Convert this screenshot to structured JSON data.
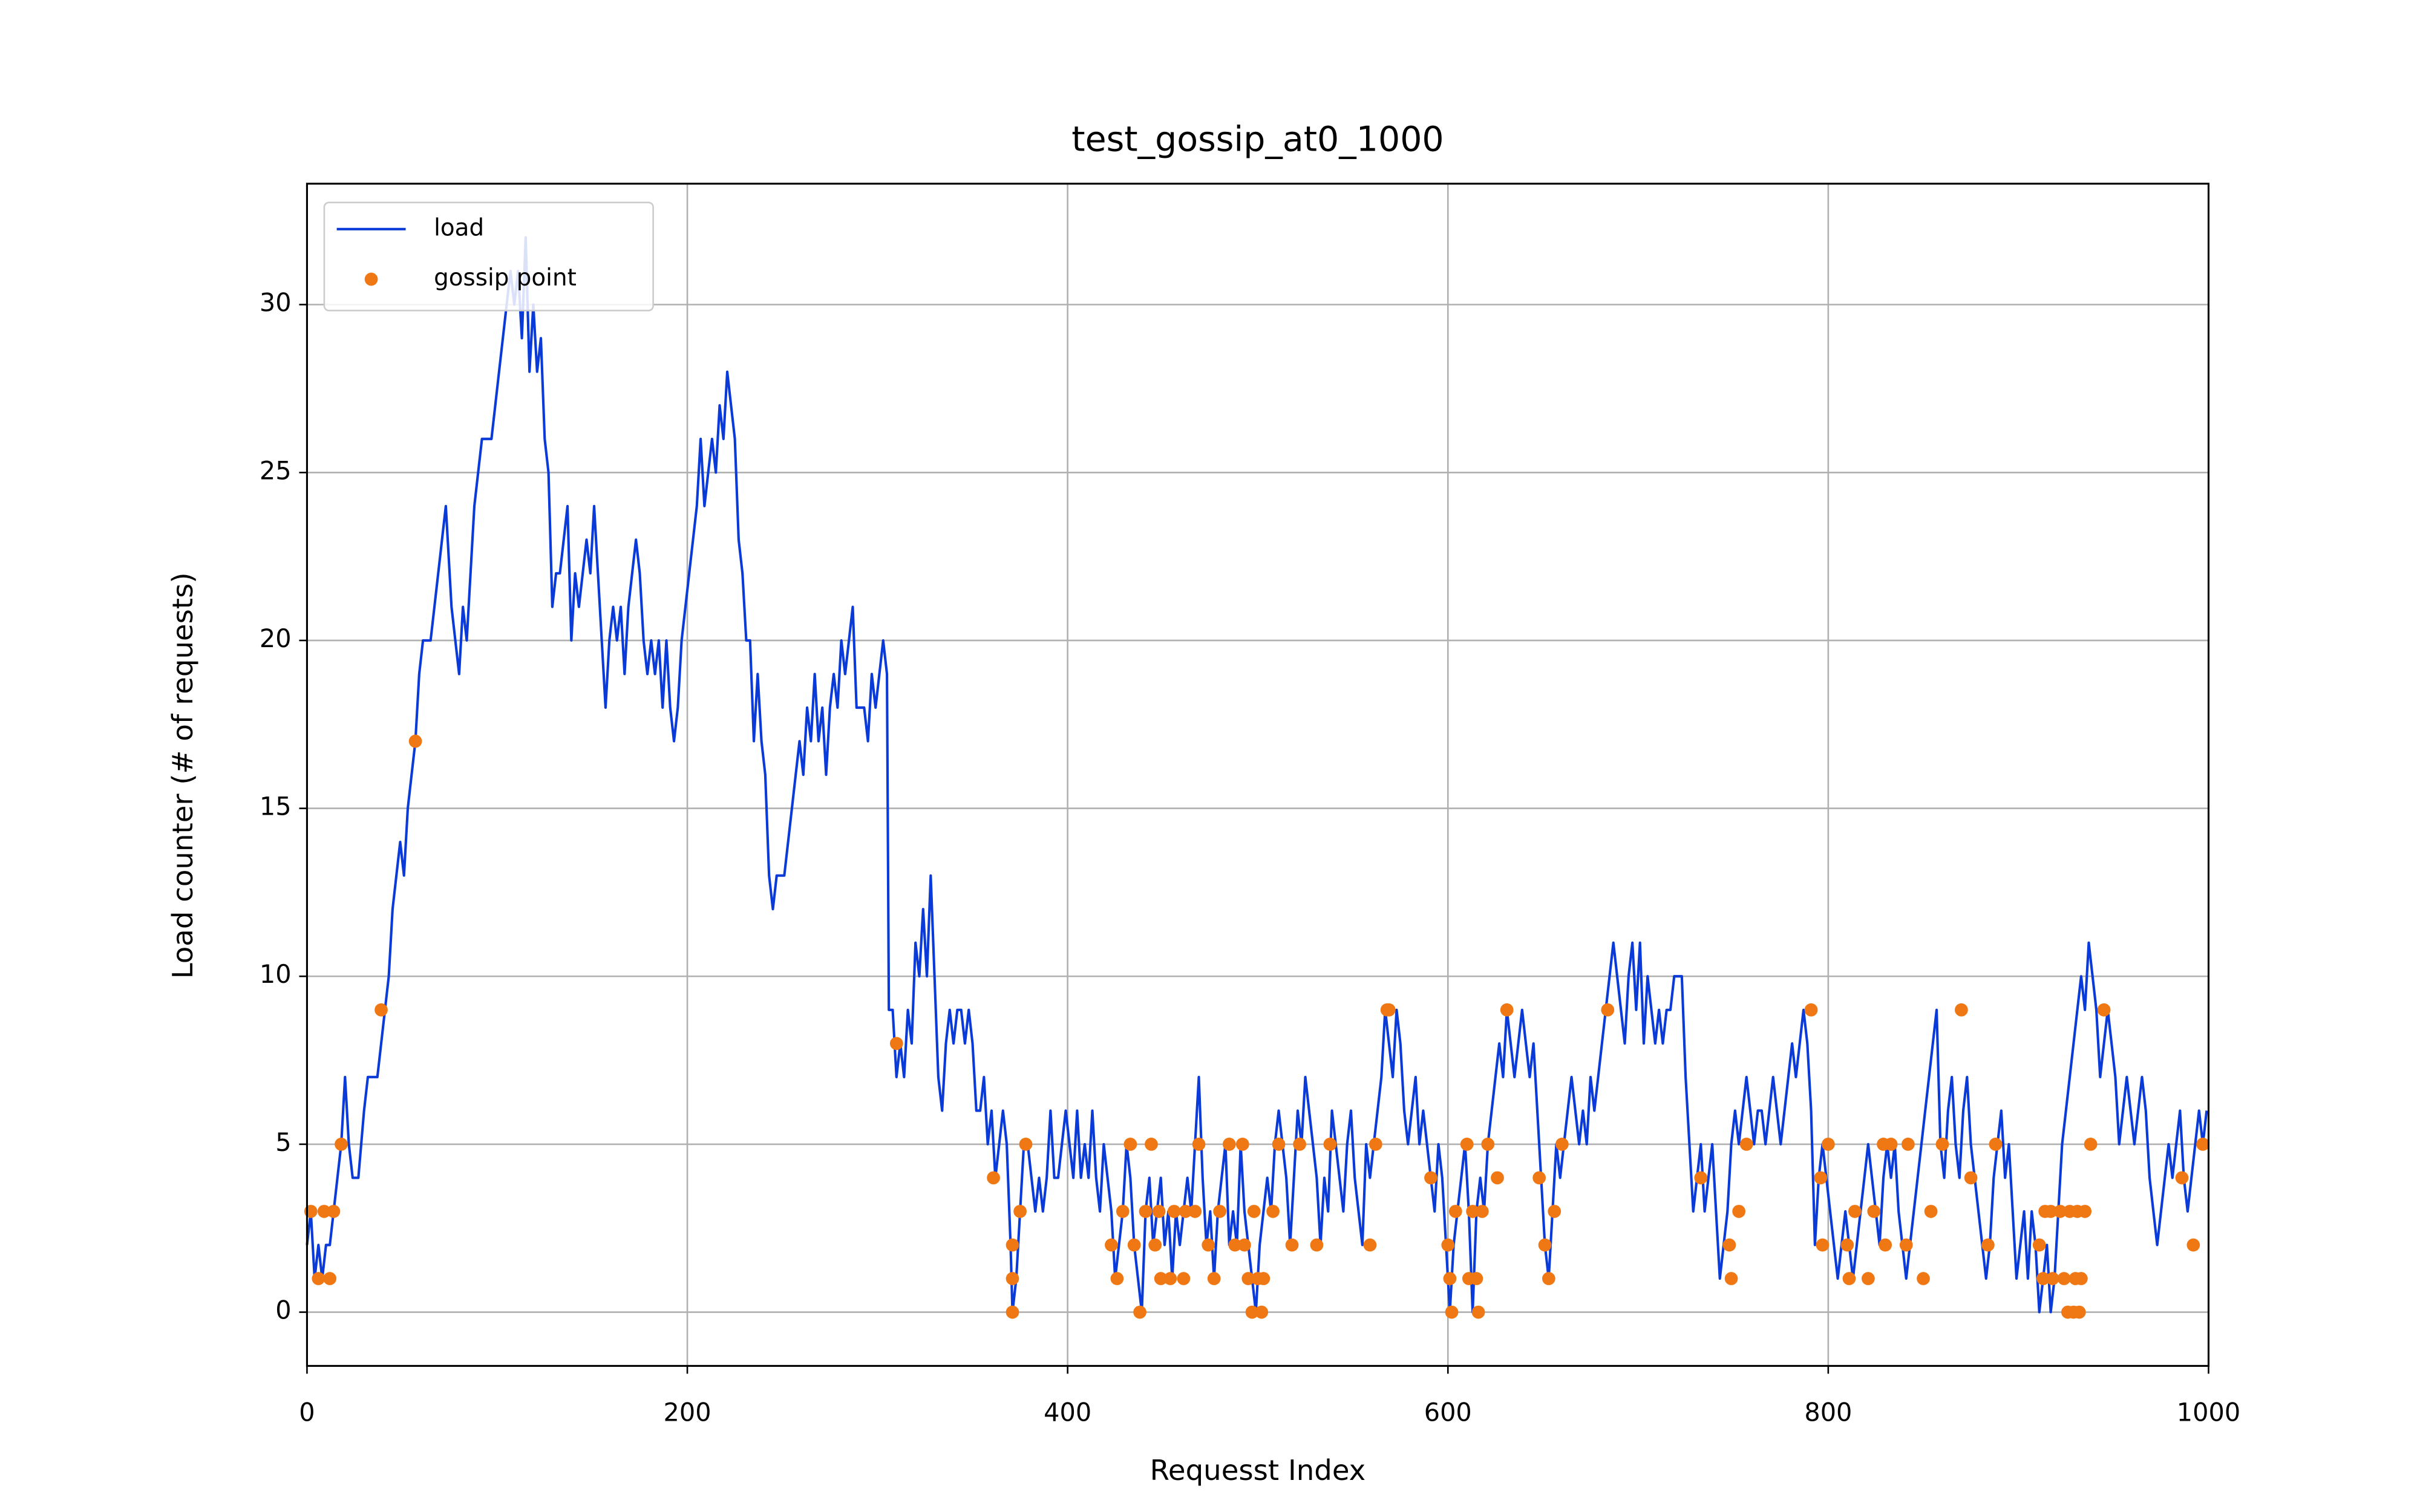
{
  "chart_data": {
    "type": "line",
    "title": "test_gossip_at0_1000",
    "x_label": "Requesst Index",
    "y_label": "Load counter (# of requests)",
    "xlim": [
      0,
      1000
    ],
    "ylim": [
      -1.6,
      33.6
    ],
    "xticks": [
      0,
      200,
      400,
      600,
      800,
      1000
    ],
    "yticks": [
      0,
      5,
      10,
      15,
      20,
      25,
      30
    ],
    "grid": true,
    "legend": "upper left",
    "series": [
      {
        "name": "load",
        "kind": "line",
        "color": "#0a3ad8",
        "x": [
          0,
          2,
          4,
          6,
          8,
          10,
          12,
          14,
          16,
          18,
          20,
          22,
          24,
          27,
          30,
          32,
          37,
          39,
          41,
          43,
          45,
          47,
          49,
          51,
          53,
          55,
          57,
          59,
          61,
          65,
          67,
          69,
          71,
          73,
          74,
          76,
          78,
          80,
          82,
          84,
          86,
          88,
          90,
          92,
          97,
          99,
          101,
          103,
          105,
          107,
          109,
          111,
          113,
          115,
          117,
          119,
          121,
          123,
          125,
          127,
          129,
          131,
          133,
          135,
          137,
          139,
          141,
          143,
          145,
          147,
          149,
          151,
          153,
          155,
          157,
          159,
          161,
          163,
          165,
          167,
          169,
          171,
          173,
          175,
          177,
          179,
          181,
          183,
          185,
          187,
          189,
          191,
          193,
          195,
          197,
          199,
          201,
          203,
          205,
          207,
          209,
          211,
          213,
          215,
          217,
          219,
          221,
          223,
          225,
          227,
          229,
          231,
          233,
          235,
          237,
          239,
          241,
          243,
          245,
          247,
          251,
          253,
          255,
          257,
          259,
          261,
          263,
          265,
          267,
          269,
          271,
          273,
          275,
          277,
          279,
          281,
          283,
          285,
          287,
          289,
          293,
          295,
          297,
          299,
          301,
          303,
          305,
          306,
          308,
          310,
          312,
          314,
          316,
          318,
          320,
          322,
          324,
          326,
          328,
          330,
          332,
          334,
          336,
          338,
          340,
          342,
          344,
          346,
          348,
          350,
          352,
          354,
          356,
          358,
          360,
          362,
          364,
          366,
          368,
          370,
          371,
          373,
          375,
          377,
          379,
          381,
          383,
          385,
          387,
          389,
          391,
          393,
          395,
          397,
          399,
          401,
          403,
          405,
          407,
          409,
          411,
          413,
          415,
          417,
          419,
          421,
          423,
          425,
          427,
          429,
          431,
          433,
          435,
          437,
          439,
          441,
          443,
          445,
          447,
          449,
          451,
          453,
          455,
          457,
          459,
          461,
          463,
          465,
          467,
          469,
          471,
          473,
          475,
          477,
          479,
          481,
          483,
          485,
          487,
          489,
          491,
          493,
          495,
          497,
          499,
          501,
          503,
          505,
          507,
          509,
          511,
          513,
          515,
          517,
          519,
          521,
          523,
          525,
          527,
          529,
          531,
          533,
          535,
          537,
          539,
          541,
          543,
          545,
          547,
          549,
          551,
          553,
          555,
          557,
          559,
          561,
          563,
          565,
          567,
          569,
          571,
          573,
          575,
          577,
          579,
          581,
          583,
          585,
          587,
          589,
          591,
          593,
          595,
          597,
          599,
          600,
          601,
          603,
          605,
          607,
          609,
          611,
          613,
          615,
          617,
          619,
          621,
          623,
          625,
          627,
          629,
          631,
          633,
          635,
          637,
          639,
          641,
          643,
          645,
          647,
          649,
          651,
          653,
          655,
          657,
          659,
          661,
          663,
          665,
          667,
          669,
          671,
          673,
          675,
          677,
          679,
          681,
          683,
          685,
          687,
          689,
          691,
          693,
          695,
          697,
          699,
          701,
          703,
          705,
          707,
          709,
          711,
          713,
          715,
          717,
          719,
          723,
          725,
          727,
          729,
          731,
          733,
          735,
          737,
          739,
          741,
          743,
          745,
          747,
          749,
          751,
          753,
          755,
          757,
          759,
          761,
          763,
          765,
          767,
          769,
          771,
          773,
          775,
          777,
          779,
          781,
          783,
          785,
          787,
          789,
          791,
          793,
          795,
          797,
          799,
          801,
          803,
          805,
          807,
          809,
          811,
          813,
          815,
          817,
          819,
          821,
          823,
          825,
          827,
          829,
          831,
          833,
          835,
          837,
          839,
          841,
          843,
          845,
          847,
          849,
          851,
          853,
          855,
          857,
          859,
          861,
          863,
          865,
          867,
          869,
          871,
          873,
          875,
          877,
          879,
          881,
          883,
          885,
          887,
          889,
          891,
          893,
          895,
          897,
          899,
          901,
          903,
          905,
          907,
          909,
          911,
          913,
          915,
          917,
          919,
          921,
          923,
          925,
          927,
          929,
          931,
          933,
          935,
          937,
          939,
          941,
          943,
          945,
          947,
          949,
          951,
          953,
          955,
          957,
          959,
          961,
          963,
          965,
          967,
          969,
          971,
          973,
          975,
          977,
          979,
          981,
          983,
          985,
          987,
          989,
          991,
          993,
          995,
          997,
          999
        ],
        "values": [
          2,
          3,
          1,
          2,
          1,
          2,
          2,
          3,
          4,
          5,
          7,
          5,
          4,
          4,
          6,
          7,
          7,
          8,
          9,
          10,
          12,
          13,
          14,
          13,
          15,
          16,
          17,
          19,
          20,
          20,
          21,
          22,
          23,
          24,
          23,
          21,
          20,
          19,
          21,
          20,
          22,
          24,
          25,
          26,
          26,
          27,
          28,
          29,
          30,
          31,
          30,
          31,
          29,
          32,
          28,
          30,
          28,
          29,
          26,
          25,
          21,
          22,
          22,
          23,
          24,
          20,
          22,
          21,
          22,
          23,
          22,
          24,
          22,
          20,
          18,
          20,
          21,
          20,
          21,
          19,
          21,
          22,
          23,
          22,
          20,
          19,
          20,
          19,
          20,
          18,
          20,
          18,
          17,
          18,
          20,
          21,
          22,
          23,
          24,
          26,
          24,
          25,
          26,
          25,
          27,
          26,
          28,
          27,
          26,
          23,
          22,
          20,
          20,
          17,
          19,
          17,
          16,
          13,
          12,
          13,
          13,
          14,
          15,
          16,
          17,
          16,
          18,
          17,
          19,
          17,
          18,
          16,
          18,
          19,
          18,
          20,
          19,
          20,
          21,
          18,
          18,
          17,
          19,
          18,
          19,
          20,
          19,
          9,
          9,
          7,
          8,
          7,
          9,
          8,
          11,
          10,
          12,
          10,
          13,
          10,
          7,
          6,
          8,
          9,
          8,
          9,
          9,
          8,
          9,
          8,
          6,
          6,
          7,
          5,
          6,
          4,
          5,
          6,
          5,
          2,
          0,
          1,
          3,
          5,
          5,
          4,
          3,
          4,
          3,
          4,
          6,
          4,
          4,
          5,
          6,
          5,
          4,
          6,
          4,
          5,
          4,
          6,
          4,
          3,
          5,
          4,
          3,
          1,
          2,
          3,
          5,
          4,
          2,
          1,
          0,
          3,
          4,
          2,
          3,
          4,
          2,
          3,
          1,
          3,
          2,
          3,
          4,
          3,
          5,
          7,
          4,
          2,
          3,
          1,
          3,
          4,
          5,
          2,
          3,
          2,
          5,
          3,
          2,
          1,
          0,
          2,
          3,
          4,
          3,
          5,
          6,
          5,
          4,
          2,
          4,
          6,
          5,
          7,
          6,
          5,
          4,
          2,
          4,
          3,
          6,
          5,
          4,
          3,
          5,
          6,
          4,
          3,
          2,
          5,
          4,
          5,
          6,
          7,
          9,
          8,
          7,
          9,
          8,
          6,
          5,
          6,
          7,
          5,
          6,
          5,
          4,
          3,
          5,
          4,
          2,
          1,
          0,
          2,
          3,
          4,
          5,
          3,
          0,
          3,
          4,
          3,
          5,
          6,
          7,
          8,
          7,
          9,
          8,
          7,
          8,
          9,
          8,
          7,
          8,
          6,
          4,
          2,
          1,
          3,
          5,
          4,
          5,
          6,
          7,
          6,
          5,
          6,
          5,
          7,
          6,
          7,
          8,
          9,
          10,
          11,
          10,
          9,
          8,
          10,
          11,
          9,
          11,
          8,
          10,
          9,
          8,
          9,
          8,
          9,
          9,
          10,
          10,
          7,
          5,
          3,
          4,
          5,
          3,
          4,
          5,
          3,
          1,
          2,
          3,
          5,
          6,
          5,
          6,
          7,
          6,
          5,
          6,
          6,
          5,
          6,
          7,
          6,
          5,
          6,
          7,
          8,
          7,
          8,
          9,
          8,
          6,
          2,
          4,
          5,
          4,
          3,
          2,
          1,
          2,
          3,
          2,
          1,
          2,
          3,
          4,
          5,
          4,
          3,
          2,
          4,
          5,
          4,
          5,
          3,
          2,
          1,
          2,
          3,
          4,
          5,
          6,
          7,
          8,
          9,
          5,
          4,
          6,
          7,
          5,
          4,
          6,
          7,
          5,
          4,
          3,
          2,
          1,
          2,
          4,
          5,
          6,
          4,
          5,
          3,
          1,
          2,
          3,
          1,
          3,
          2,
          0,
          1,
          2,
          0,
          1,
          3,
          5,
          6,
          7,
          8,
          9,
          10,
          9,
          11,
          10,
          9,
          7,
          8,
          9,
          8,
          7,
          5,
          6,
          7,
          6,
          5,
          6,
          7,
          6,
          4,
          3,
          2,
          3,
          4,
          5,
          4,
          5,
          6,
          4,
          3,
          4,
          5,
          6,
          5,
          6
        ]
      },
      {
        "name": "gossip point",
        "kind": "scatter",
        "color": "#f07814",
        "x": [
          2,
          6,
          9,
          12,
          14,
          18,
          39,
          57,
          310,
          361,
          371,
          371,
          371,
          375,
          378,
          423,
          426,
          429,
          433,
          435,
          438,
          441,
          444,
          446,
          448,
          449,
          454,
          456,
          461,
          462,
          467,
          469,
          474,
          477,
          480,
          485,
          488,
          492,
          493,
          495,
          497,
          498,
          500,
          502,
          503,
          508,
          511,
          518,
          522,
          531,
          538,
          559,
          562,
          568,
          569,
          591,
          600,
          601,
          602,
          604,
          610,
          611,
          613,
          615,
          616,
          618,
          621,
          626,
          631,
          648,
          651,
          653,
          656,
          660,
          684,
          733,
          748,
          749,
          753,
          757,
          791,
          796,
          797,
          800,
          810,
          811,
          814,
          821,
          824,
          829,
          830,
          833,
          841,
          842,
          850,
          854,
          860,
          870,
          875,
          884,
          888,
          911,
          913,
          914,
          917,
          918,
          922,
          924,
          926,
          927,
          929,
          930,
          931,
          932,
          933,
          935,
          938,
          945,
          986,
          992,
          997
        ],
        "values": [
          3,
          1,
          3,
          1,
          3,
          5,
          9,
          17,
          8,
          4,
          2,
          1,
          0,
          3,
          5,
          2,
          1,
          3,
          5,
          2,
          0,
          3,
          5,
          2,
          3,
          1,
          1,
          3,
          1,
          3,
          3,
          5,
          2,
          1,
          3,
          5,
          2,
          5,
          2,
          1,
          0,
          3,
          1,
          0,
          1,
          3,
          5,
          2,
          5,
          2,
          5,
          2,
          5,
          9,
          9,
          4,
          2,
          1,
          0,
          3,
          5,
          1,
          3,
          1,
          0,
          3,
          5,
          4,
          9,
          4,
          2,
          1,
          3,
          5,
          9,
          4,
          2,
          1,
          3,
          5,
          9,
          4,
          2,
          5,
          2,
          1,
          3,
          1,
          3,
          5,
          2,
          5,
          2,
          5,
          1,
          3,
          5,
          9,
          4,
          2,
          5,
          2,
          1,
          3,
          3,
          1,
          3,
          1,
          0,
          3,
          0,
          1,
          3,
          0,
          1,
          3,
          5,
          9,
          4,
          2,
          5
        ]
      }
    ]
  }
}
